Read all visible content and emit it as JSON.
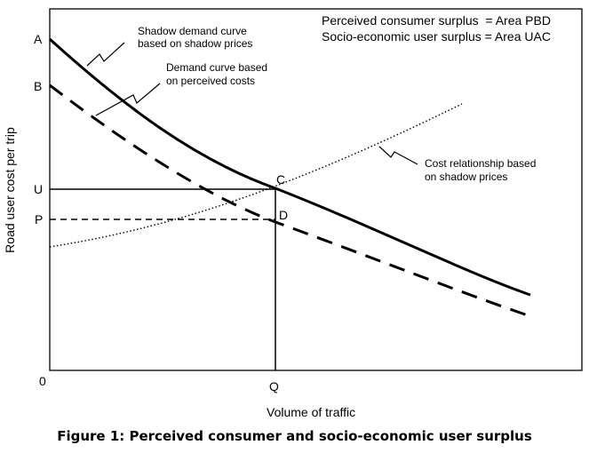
{
  "figure": {
    "caption": "Figure 1: Perceived consumer and socio-economic user surplus",
    "xlabel": "Volume of traffic",
    "ylabel": "Road user cost per trip",
    "origin_label": "0",
    "point_labels": {
      "A": "A",
      "B": "B",
      "U": "U",
      "P": "P",
      "C": "C",
      "D": "D",
      "Q": "Q"
    },
    "legend": {
      "line1": "Perceived consumer surplus  = Area PBD",
      "line2": "Socio-economic user surplus = Area UAC"
    },
    "annotations": {
      "shadow_demand_1": "Shadow demand curve",
      "shadow_demand_2": "based on shadow prices",
      "perceived_demand_1": "Demand curve based",
      "perceived_demand_2": "on perceived costs",
      "cost_relation_1": "Cost relationship based",
      "cost_relation_2": "on shadow prices"
    }
  }
}
